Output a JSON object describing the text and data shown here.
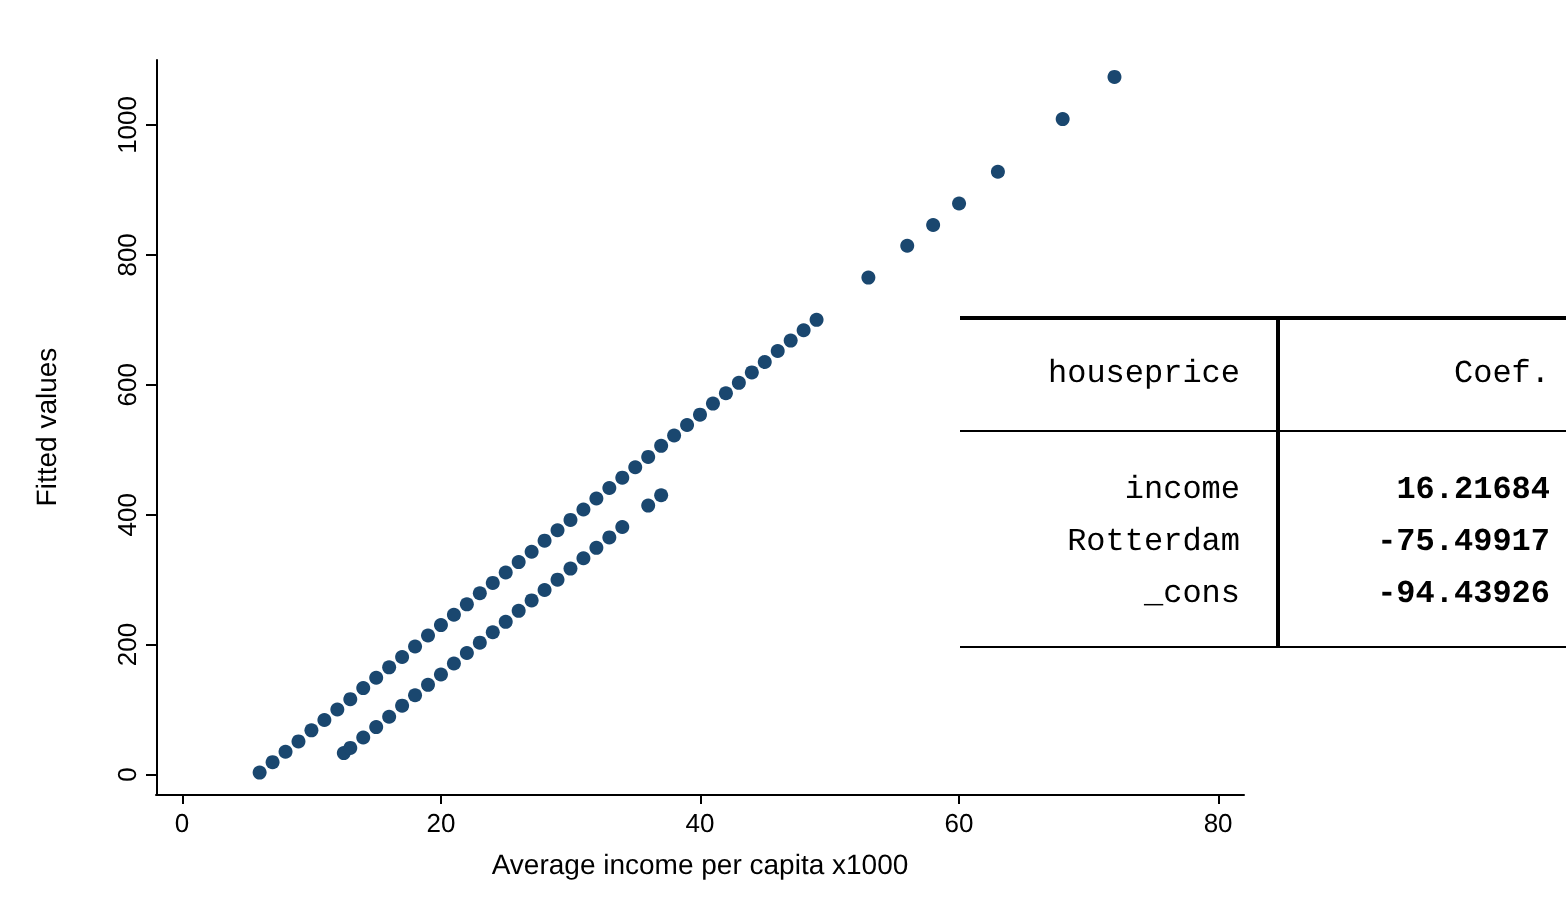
{
  "chart_data": {
    "type": "scatter",
    "xlabel": "Average income per capita x1000",
    "ylabel": "Fitted values",
    "xlim": [
      -2,
      82
    ],
    "xticks": [
      0,
      20,
      40,
      60,
      80
    ],
    "ylim": [
      -30,
      1100
    ],
    "yticks": [
      0,
      200,
      400,
      600,
      800,
      1000
    ],
    "grid": false,
    "marker": "circle",
    "series": [
      {
        "color": "#1a476f",
        "x": [
          6,
          7,
          8,
          9,
          10,
          11,
          12,
          13,
          14,
          15,
          16,
          17,
          18,
          19,
          20,
          21,
          22,
          23,
          24,
          25,
          26,
          27,
          28,
          29,
          30,
          31,
          32,
          33,
          34,
          35,
          36,
          37,
          38,
          39,
          40,
          41,
          42,
          43,
          44,
          45,
          46,
          47,
          48,
          49,
          53,
          56,
          58,
          60,
          63,
          68,
          72
        ],
        "values": [
          3,
          19,
          35,
          51,
          68,
          84,
          100,
          116,
          133,
          149,
          165,
          181,
          197,
          214,
          230,
          246,
          262,
          279,
          295,
          311,
          327,
          343,
          360,
          376,
          392,
          408,
          425,
          441,
          457,
          473,
          489,
          506,
          522,
          538,
          554,
          571,
          587,
          603,
          619,
          635,
          652,
          668,
          684,
          700,
          765,
          814,
          846,
          879,
          928,
          1009,
          1074
        ]
      },
      {
        "color": "#1a476f",
        "x": [
          12.5,
          13,
          14,
          15,
          16,
          17,
          18,
          19,
          20,
          21,
          22,
          23,
          24,
          25,
          26,
          27,
          28,
          29,
          30,
          31,
          32,
          33,
          34,
          36,
          37
        ],
        "values": [
          33,
          41,
          57,
          73,
          89,
          106,
          122,
          138,
          154,
          171,
          187,
          203,
          219,
          235,
          252,
          268,
          284,
          300,
          317,
          333,
          349,
          365,
          381,
          414,
          430
        ]
      }
    ],
    "annotations": [
      "houseprice",
      "Coef.",
      "income",
      "16.21684",
      "Rotterdam",
      "-75.49917",
      "_cons",
      "-94.43926"
    ]
  }
}
